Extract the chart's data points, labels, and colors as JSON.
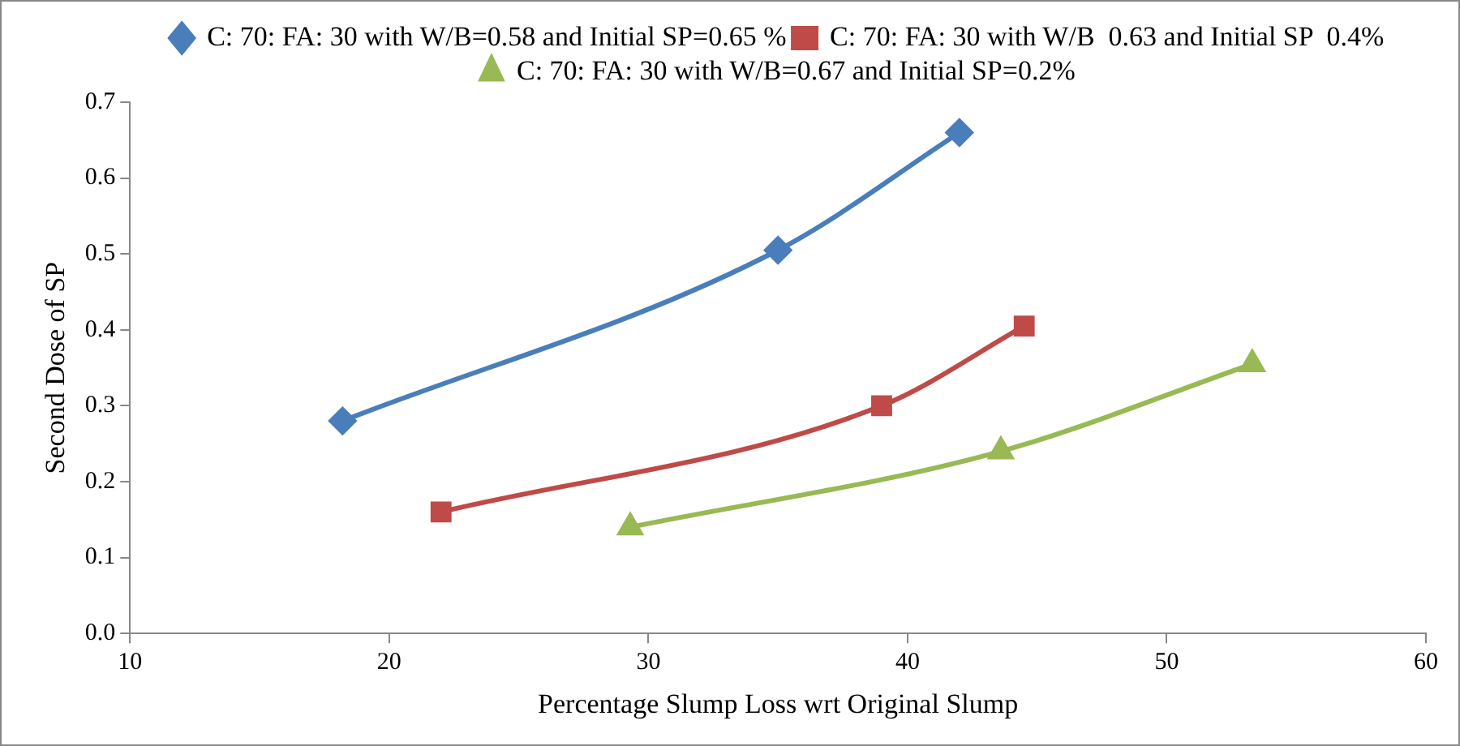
{
  "chart_data": {
    "type": "line",
    "xlabel": "Percentage Slump Loss wrt Original Slump",
    "ylabel": "Second Dose of SP",
    "xlim": [
      10,
      60
    ],
    "xticks": [
      10,
      20,
      30,
      40,
      50,
      60
    ],
    "ylim": [
      0,
      0.7
    ],
    "yticks": [
      {
        "value": 0,
        "label": "0.0"
      },
      0.1,
      0.2,
      0.3,
      0.4,
      0.5,
      0.6,
      0.7
    ],
    "grid": false,
    "legend": "top",
    "line_style": "solid",
    "series": [
      {
        "name": "C: 70: FA: 30 with W/B=0.58 and Initial SP=0.65 %",
        "color": "#4a7ebb",
        "marker": "diamond",
        "x": [
          18.2,
          35.0,
          42.0
        ],
        "values": [
          0.28,
          0.505,
          0.66
        ]
      },
      {
        "name": "C: 70: FA: 30 with W/B  0.63 and Initial SP  0.4%",
        "color": "#be4b48",
        "marker": "square",
        "x": [
          22.0,
          39.0,
          44.5
        ],
        "values": [
          0.16,
          0.3,
          0.405
        ]
      },
      {
        "name": "C: 70: FA: 30 with W/B=0.67 and Initial SP=0.2%",
        "color": "#98b954",
        "marker": "triangle",
        "x": [
          29.3,
          43.6,
          53.3
        ],
        "values": [
          0.14,
          0.24,
          0.355
        ]
      }
    ]
  }
}
